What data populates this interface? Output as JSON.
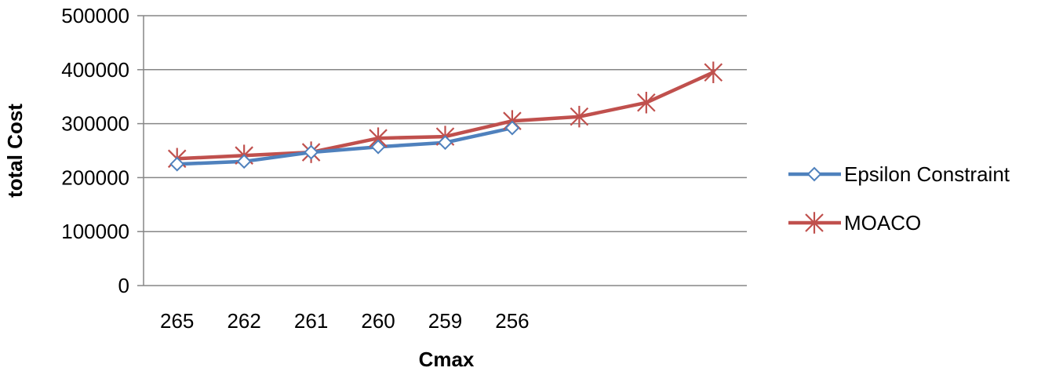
{
  "chart_data": {
    "type": "line",
    "title": "",
    "xlabel": "Cmax",
    "ylabel": "total Cost",
    "categories": [
      "265",
      "262",
      "261",
      "260",
      "259",
      "256",
      "",
      "",
      ""
    ],
    "ylim": [
      0,
      500000
    ],
    "yticks": [
      "0",
      "100000",
      "200000",
      "300000",
      "400000",
      "500000"
    ],
    "grid": true,
    "legend_position": "right",
    "series": [
      {
        "name": "Epsilon Constraint",
        "color": "#4F81BD",
        "marker": "diamond",
        "values": [
          225000,
          230000,
          247000,
          257000,
          265000,
          292000,
          null,
          null,
          null
        ]
      },
      {
        "name": "MOACO",
        "color": "#C0504D",
        "marker": "star",
        "values": [
          235000,
          241000,
          247000,
          273000,
          276000,
          305000,
          313000,
          339000,
          395000
        ]
      }
    ]
  }
}
